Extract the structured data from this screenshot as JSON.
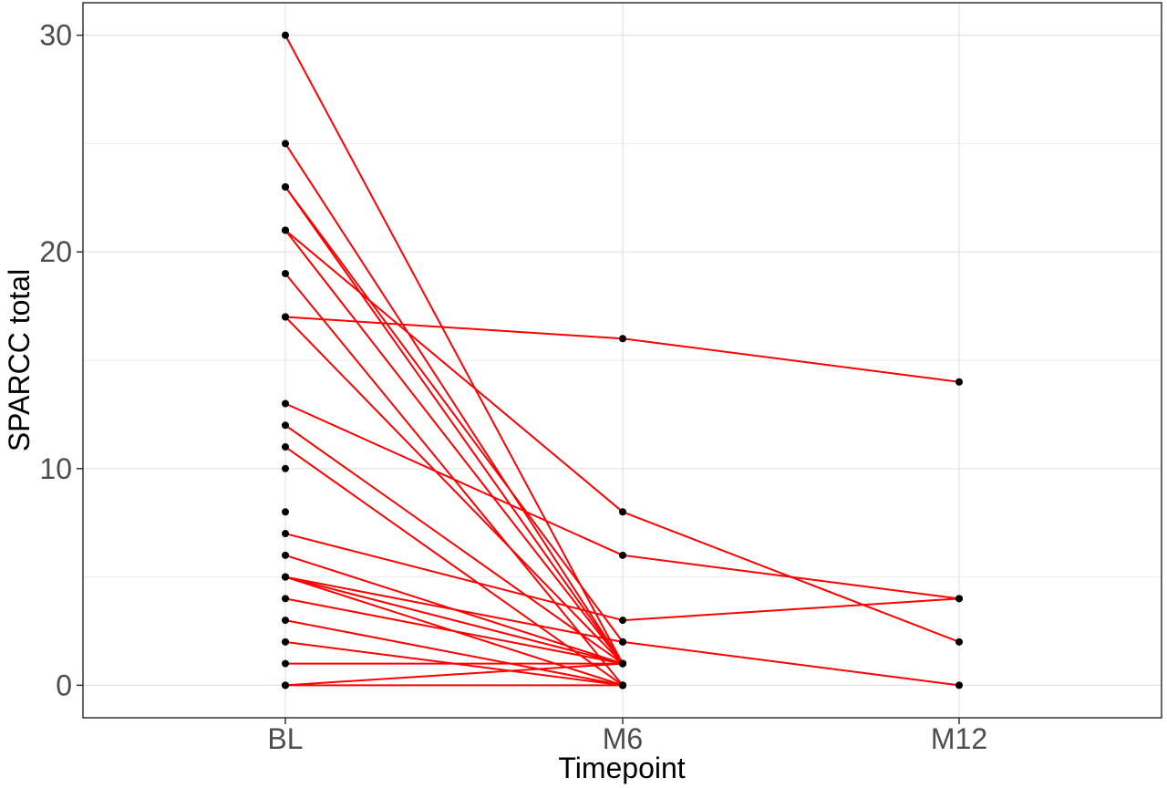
{
  "chart_data": {
    "type": "line",
    "title": "",
    "xlabel": "Timepoint",
    "ylabel": "SPARCC total",
    "categories": [
      "BL",
      "M6",
      "M12"
    ],
    "ylim": [
      -1.5,
      31.5
    ],
    "yticks": [
      0,
      10,
      20,
      30
    ],
    "ytick_labels": [
      "0",
      "10",
      "20",
      "30"
    ],
    "grid": true,
    "legend": "none",
    "line_color": "#ff0000",
    "point_color": "#000000",
    "series": [
      {
        "values": [
          30,
          1,
          null
        ]
      },
      {
        "values": [
          25,
          1,
          null
        ]
      },
      {
        "values": [
          23,
          2,
          null
        ]
      },
      {
        "values": [
          23,
          1,
          null
        ]
      },
      {
        "values": [
          21,
          8,
          2
        ]
      },
      {
        "values": [
          21,
          1,
          null
        ]
      },
      {
        "values": [
          19,
          0,
          null
        ]
      },
      {
        "values": [
          17,
          16,
          14
        ]
      },
      {
        "values": [
          17,
          1,
          null
        ]
      },
      {
        "values": [
          13,
          6,
          4
        ]
      },
      {
        "values": [
          12,
          1,
          null
        ]
      },
      {
        "values": [
          11,
          0,
          null
        ]
      },
      {
        "values": [
          10,
          null,
          null
        ]
      },
      {
        "values": [
          8,
          null,
          null
        ]
      },
      {
        "values": [
          7,
          3,
          4
        ]
      },
      {
        "values": [
          6,
          1,
          null
        ]
      },
      {
        "values": [
          5,
          2,
          0
        ]
      },
      {
        "values": [
          5,
          1,
          null
        ]
      },
      {
        "values": [
          5,
          0,
          null
        ]
      },
      {
        "values": [
          4,
          1,
          null
        ]
      },
      {
        "values": [
          3,
          0,
          null
        ]
      },
      {
        "values": [
          2,
          0,
          null
        ]
      },
      {
        "values": [
          1,
          1,
          null
        ]
      },
      {
        "values": [
          0,
          1,
          null
        ]
      },
      {
        "values": [
          0,
          0,
          null
        ]
      }
    ]
  }
}
